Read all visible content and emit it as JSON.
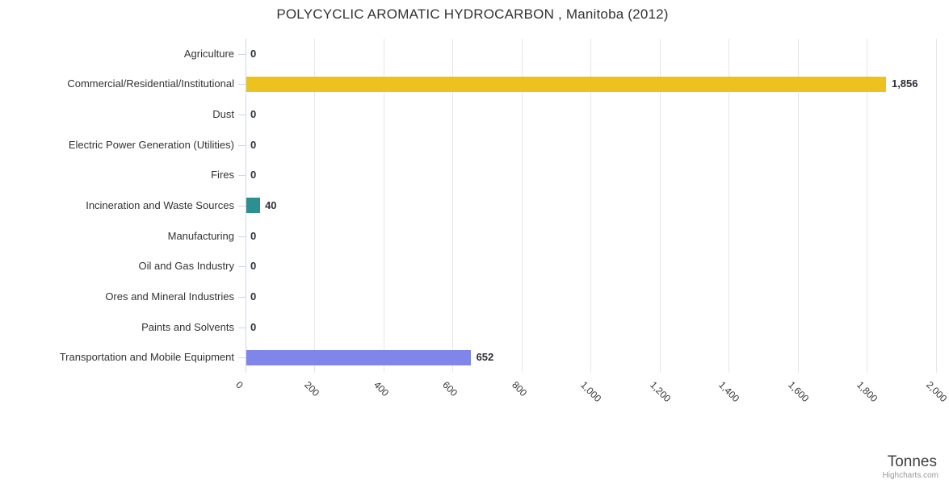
{
  "title": "POLYCYCLIC AROMATIC HYDROCARBON , Manitoba (2012)",
  "axis_title": "Tonnes",
  "credit": "Highcharts.com",
  "colors": {
    "grid": "#e6e6e6",
    "axis_line": "#ccd6eb",
    "title_text": "#333333",
    "label_text": "#333333",
    "data_label_text": "#2e2e38",
    "credit_text": "#999999"
  },
  "chart_data": {
    "type": "bar",
    "orientation": "horizontal",
    "title": "POLYCYCLIC AROMATIC HYDROCARBON , Manitoba (2012)",
    "categories": [
      "Agriculture",
      "Commercial/Residential/Institutional",
      "Dust",
      "Electric Power Generation (Utilities)",
      "Fires",
      "Incineration and Waste Sources",
      "Manufacturing",
      "Oil and Gas Industry",
      "Ores and Mineral Industries",
      "Paints and Solvents",
      "Transportation and Mobile Equipment"
    ],
    "values": [
      0,
      1856,
      0,
      0,
      0,
      40,
      0,
      0,
      0,
      0,
      652
    ],
    "value_labels": [
      "0",
      "1,856",
      "0",
      "0",
      "0",
      "40",
      "0",
      "0",
      "0",
      "0",
      "652"
    ],
    "bar_colors": [
      null,
      "#edc21f",
      null,
      null,
      null,
      "#2b908f",
      null,
      null,
      null,
      null,
      "#8085e9"
    ],
    "xlabel": "Tonnes",
    "xlim": [
      0,
      2000
    ],
    "xticks": [
      0,
      200,
      400,
      600,
      800,
      1000,
      1200,
      1400,
      1600,
      1800,
      2000
    ],
    "xtick_labels": [
      "0",
      "200",
      "400",
      "600",
      "800",
      "1,000",
      "1,200",
      "1,400",
      "1,600",
      "1,800",
      "2,000"
    ],
    "grid": true,
    "legend": false
  }
}
